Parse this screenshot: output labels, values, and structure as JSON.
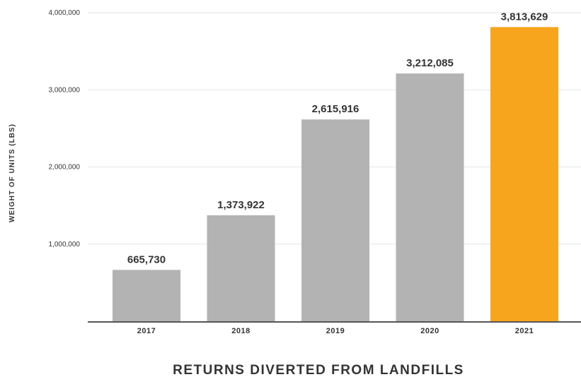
{
  "chart_data": {
    "type": "bar",
    "categories": [
      "2017",
      "2018",
      "2019",
      "2020",
      "2021"
    ],
    "values": [
      665730,
      1373922,
      2615916,
      3212085,
      3813629
    ],
    "value_labels": [
      "665,730",
      "1,373,922",
      "2,615,916",
      "3,212,085",
      "3,813,629"
    ],
    "title": "RETURNS DIVERTED FROM LANDFILLS",
    "xlabel": "",
    "ylabel": "WEIGHT OF UNITS (LBS)",
    "ylim": [
      0,
      4000000
    ],
    "yticks": [
      1000000,
      2000000,
      3000000,
      4000000
    ],
    "ytick_labels": [
      "1,000,000",
      "2,000,000",
      "3,000,000",
      "4,000,000"
    ],
    "grid": true,
    "colors": {
      "default_bar": "#b3b3b3",
      "highlight_bar": "#f7a51c",
      "gridline": "#e6e6e6",
      "axis": "#555555"
    },
    "highlight_index": 4
  }
}
